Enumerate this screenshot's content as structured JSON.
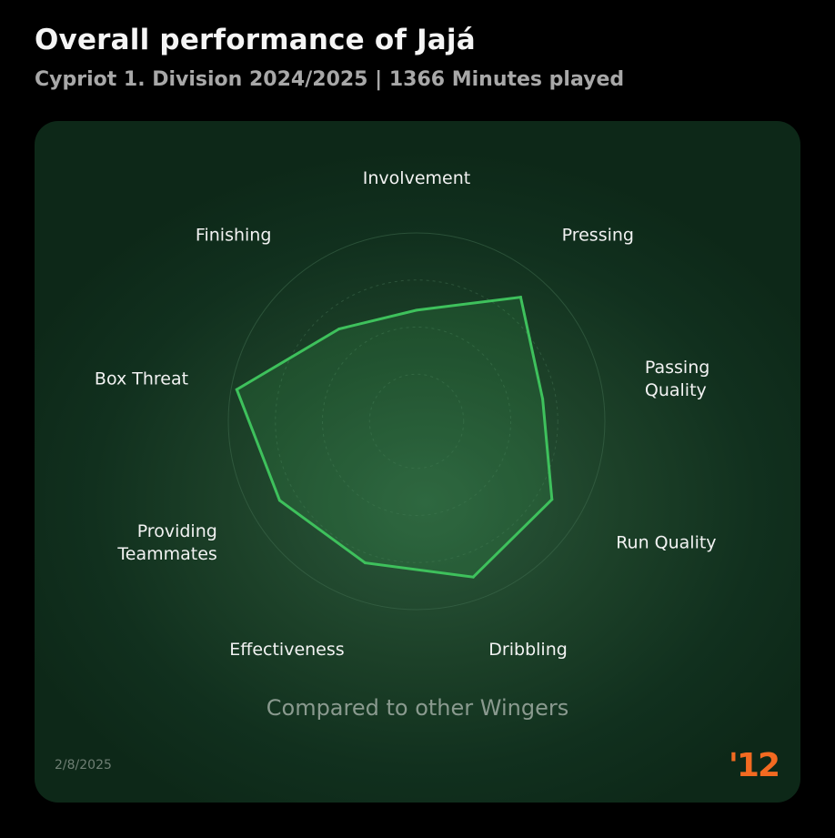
{
  "header": {
    "title": "Overall performance of Jajá",
    "subtitle": "Cypriot 1. Division 2024/2025 | 1366 Minutes played"
  },
  "chart_data": {
    "type": "radar",
    "axes": [
      {
        "label_lines": [
          "Involvement"
        ],
        "value": 59
      },
      {
        "label_lines": [
          "Pressing"
        ],
        "value": 86
      },
      {
        "label_lines": [
          "Passing",
          "Quality"
        ],
        "value": 68
      },
      {
        "label_lines": [
          "Run Quality"
        ],
        "value": 83
      },
      {
        "label_lines": [
          "Dribbling"
        ],
        "value": 88
      },
      {
        "label_lines": [
          "Effectiveness"
        ],
        "value": 80
      },
      {
        "label_lines": [
          "Providing",
          "Teammates"
        ],
        "value": 84
      },
      {
        "label_lines": [
          "Box Threat"
        ],
        "value": 97
      },
      {
        "label_lines": [
          "Finishing"
        ],
        "value": 64
      }
    ],
    "range": [
      0,
      100
    ],
    "grid_rings": 4,
    "colors": {
      "line": "#3ec15c",
      "fill": "#3ec15c",
      "grid": "#3f6b4e"
    }
  },
  "footer": {
    "note": "Compared to other Wingers",
    "date": "2/8/2025",
    "logo_text": "'12"
  }
}
